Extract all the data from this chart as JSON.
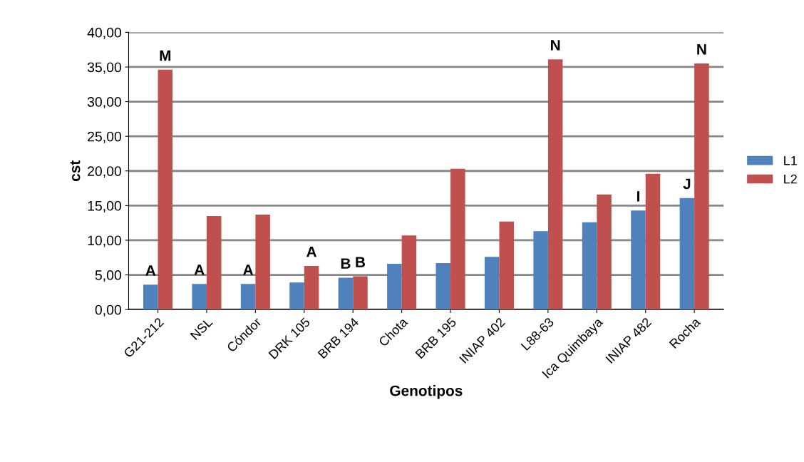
{
  "chart_data": {
    "type": "bar",
    "xlabel": "Genotipos",
    "ylabel": "cst",
    "categories": [
      "G21-212",
      "NSL",
      "Cóndor",
      "DRK 105",
      "BRB 194",
      "Chota",
      "BRB 195",
      "INIAP 402",
      "L88-63",
      "Ica Quimbaya",
      "INIAP 482",
      "Rocha"
    ],
    "series": [
      {
        "name": "L1",
        "color": "#4f81bd",
        "values": [
          3.6,
          3.7,
          3.7,
          3.9,
          4.6,
          6.6,
          6.7,
          7.6,
          11.3,
          12.6,
          14.3,
          16.1
        ]
      },
      {
        "name": "L2",
        "color": "#c0504d",
        "values": [
          34.6,
          13.5,
          13.7,
          6.3,
          4.8,
          10.7,
          20.3,
          12.7,
          36.1,
          16.6,
          19.6,
          35.5
        ]
      }
    ],
    "ylim": [
      0,
      40
    ],
    "yticks": [
      {
        "value": 0,
        "label": "0,00"
      },
      {
        "value": 5,
        "label": "5,00"
      },
      {
        "value": 10,
        "label": "10,00"
      },
      {
        "value": 15,
        "label": "15,00"
      },
      {
        "value": 20,
        "label": "20,00"
      },
      {
        "value": 25,
        "label": "25,00"
      },
      {
        "value": 30,
        "label": "30,00"
      },
      {
        "value": 35,
        "label": "35,00"
      },
      {
        "value": 40,
        "label": "40,00"
      }
    ],
    "grid": "y",
    "legend": "right",
    "annotations": [
      {
        "text": "M",
        "x": "G21-212",
        "y": 34.6
      },
      {
        "text": "A",
        "x": "G21-212",
        "y": 3.6
      },
      {
        "text": "A",
        "x": "NSL",
        "y": 3.7
      },
      {
        "text": "A",
        "x": "Cóndor",
        "y": 3.7
      },
      {
        "text": "A",
        "x": "DRK 105",
        "y": 6.3
      },
      {
        "text": "B",
        "x": "BRB 194",
        "y": 4.6
      },
      {
        "text": "B",
        "x": "BRB 194",
        "y": 4.8
      },
      {
        "text": "N",
        "x": "L88-63",
        "y": 36.1
      },
      {
        "text": "I",
        "x": "INIAP 482",
        "y": 14.3
      },
      {
        "text": "J",
        "x": "Rocha",
        "y": 16.1
      },
      {
        "text": "N",
        "x": "Rocha",
        "y": 35.5
      }
    ]
  }
}
